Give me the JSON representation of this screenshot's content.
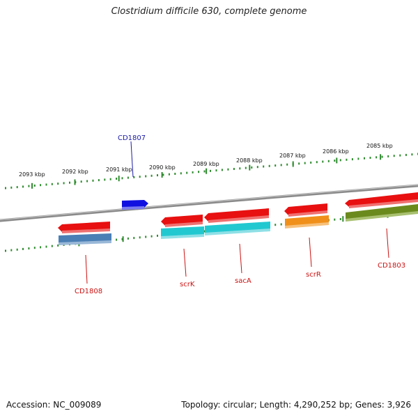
{
  "title": "Clostridium difficile 630, complete genome",
  "footer": {
    "accession_label": "Accession:",
    "accession": "NC_009089",
    "topology_label": "Topology:",
    "topology": "circular",
    "length_label": "Length:",
    "length": "4,290,252 bp",
    "genes_label": "Genes:",
    "genes": "3,926"
  },
  "scale_labels": [
    "2093 kbp",
    "2092 kbp",
    "2091 kbp",
    "2090 kbp",
    "2089 kbp",
    "2088 kbp",
    "2087 kbp",
    "2086 kbp",
    "2085 kbp"
  ],
  "genes": [
    {
      "name": "CD1807",
      "strand": "+",
      "color": "#1010e0",
      "label_color": "#1a1aa8"
    },
    {
      "name": "CD1808",
      "strand": "-",
      "color": "#e81010",
      "label_color": "#cc1111"
    },
    {
      "name": "scrK",
      "strand": "-",
      "color": "#e81010",
      "label_color": "#cc1111"
    },
    {
      "name": "sacA",
      "strand": "-",
      "color": "#e81010",
      "label_color": "#cc1111"
    },
    {
      "name": "scrR",
      "strand": "-",
      "color": "#e81010",
      "label_color": "#cc1111"
    },
    {
      "name": "CD1803",
      "strand": "-",
      "color": "#e81010",
      "label_color": "#cc1111"
    }
  ],
  "cog_colors": {
    "CD1808": "#4a7fb5",
    "scrK": "#22c8d0",
    "sacA": "#22c8d0",
    "scrR": "#f0901a",
    "CD1803": "#6b8a1e"
  },
  "colors": {
    "backbone": "#888888",
    "ticks": "#2e8b2e"
  }
}
